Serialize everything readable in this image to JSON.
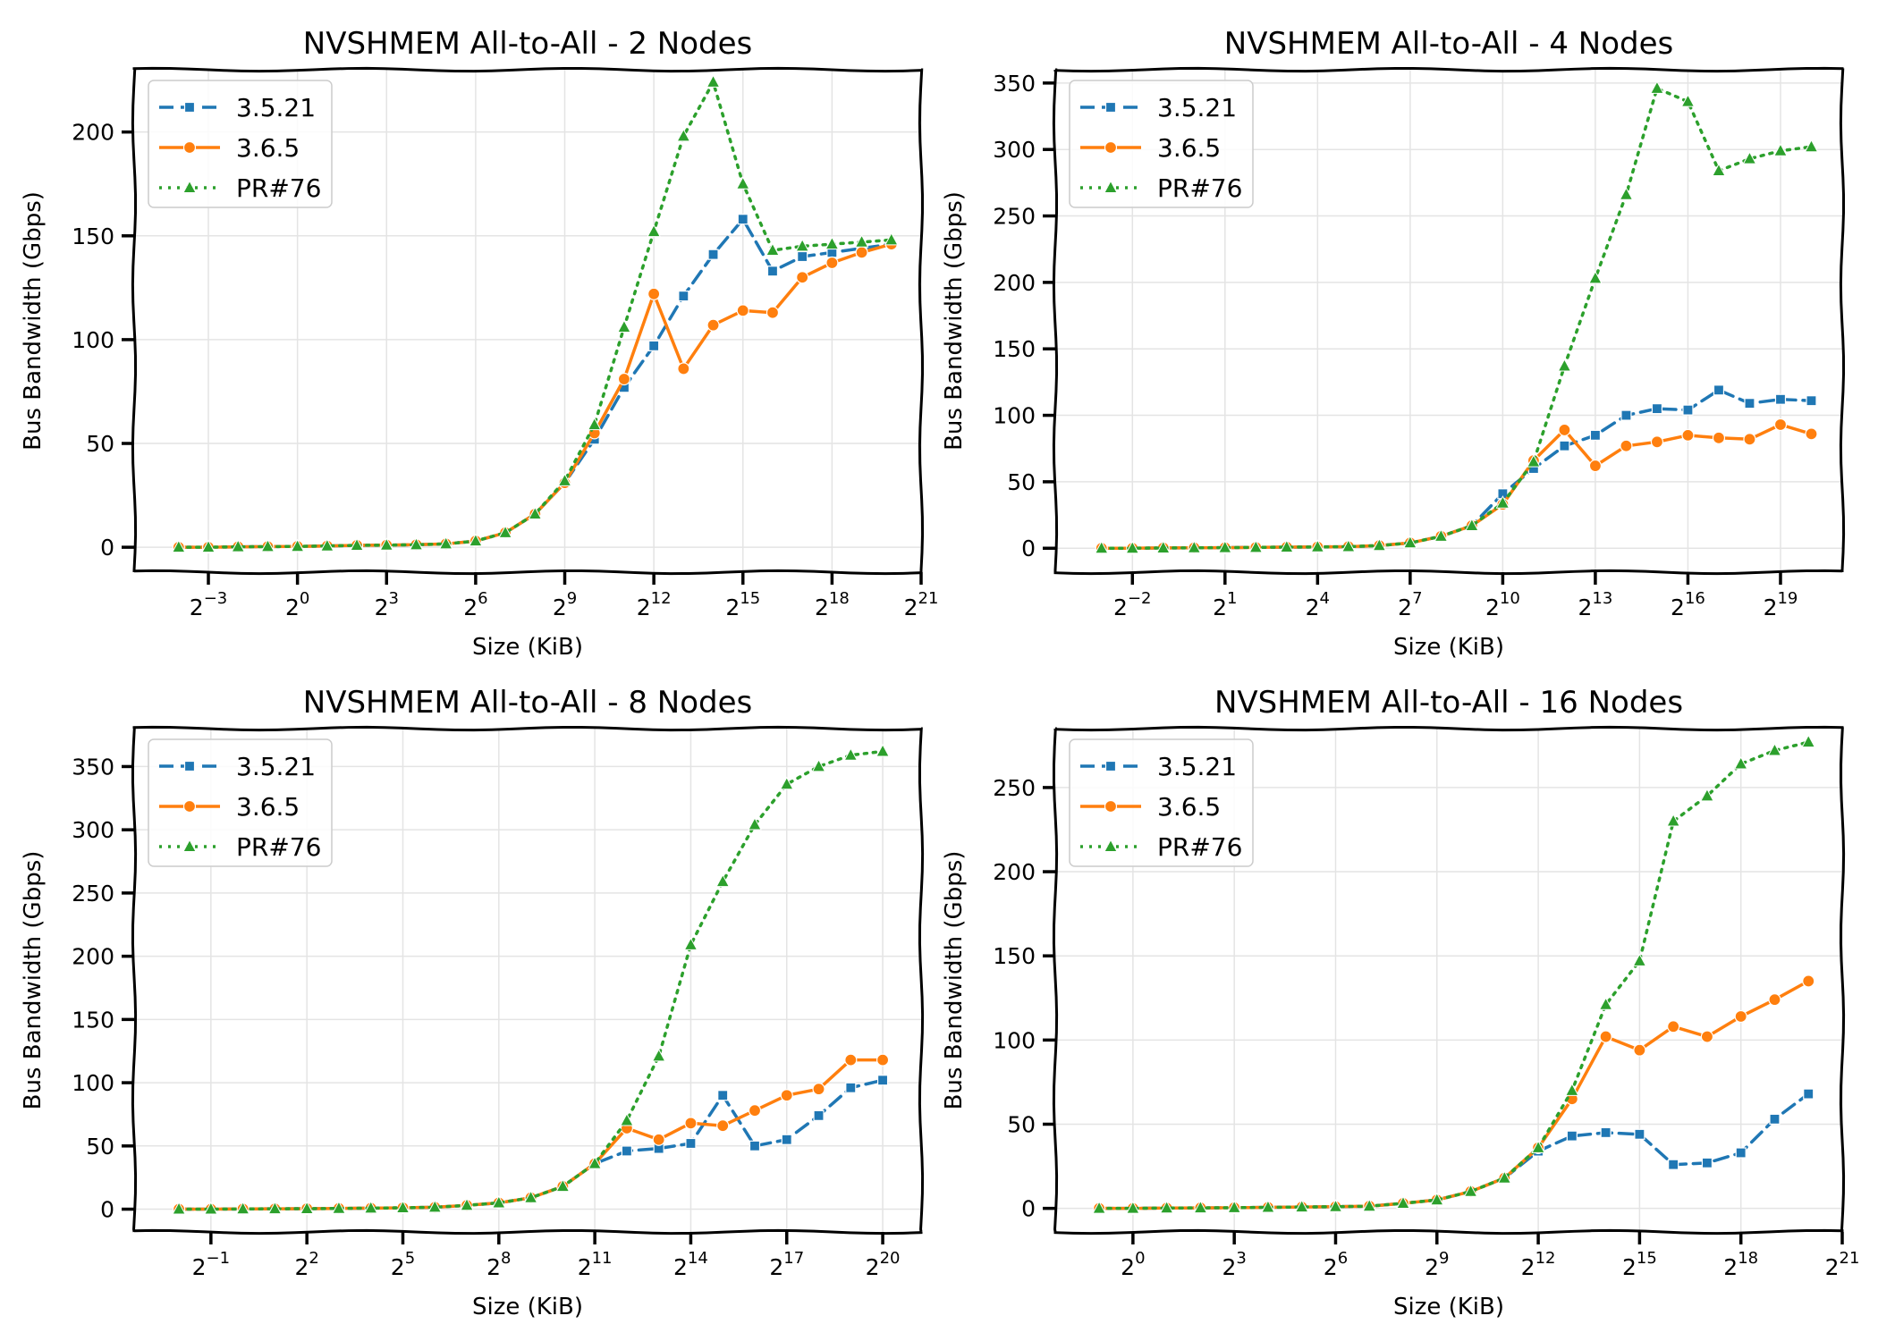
{
  "figure": {
    "background": "#ffffff",
    "colors": {
      "3.5.21": "#1f77b4",
      "3.6.5": "#ff7f0e",
      "PR#76": "#2ca02c"
    }
  },
  "chart_data": [
    {
      "type": "line",
      "title": "NVSHMEM All-to-All - 2 Nodes",
      "xlabel": "Size (KiB)",
      "ylabel": "Bus Bandwidth (Gbps)",
      "xscale": "log2",
      "xlim_exp": [
        -5.5,
        21
      ],
      "ylim": [
        -12,
        230
      ],
      "yticks": [
        0,
        50,
        100,
        150,
        200
      ],
      "xtick_exps": [
        -3,
        0,
        3,
        6,
        9,
        12,
        15,
        18,
        21
      ],
      "x_exps": [
        -4,
        -3,
        -2,
        -1,
        0,
        1,
        2,
        3,
        4,
        5,
        6,
        7,
        8,
        9,
        10,
        11,
        12,
        13,
        14,
        15,
        16,
        17,
        18,
        19,
        20
      ],
      "legend_loc": "upper-left",
      "series": [
        {
          "name": "3.5.21",
          "style": "dashed",
          "marker": "square",
          "values": [
            0,
            0,
            0.2,
            0.3,
            0.4,
            0.6,
            0.9,
            1.0,
            1.2,
            1.6,
            3,
            7,
            16,
            31,
            52,
            77,
            97,
            121,
            141,
            158,
            133,
            140,
            142,
            144,
            146
          ]
        },
        {
          "name": "3.6.5",
          "style": "solid",
          "marker": "circle",
          "values": [
            0,
            0,
            0.2,
            0.3,
            0.4,
            0.6,
            0.9,
            1.0,
            1.2,
            1.6,
            3,
            7,
            16,
            31,
            55,
            81,
            122,
            86,
            107,
            114,
            113,
            130,
            137,
            142,
            146
          ]
        },
        {
          "name": "PR#76",
          "style": "dotted",
          "marker": "triangle",
          "values": [
            0,
            0,
            0.2,
            0.3,
            0.4,
            0.6,
            0.9,
            1.0,
            1.2,
            1.6,
            3,
            7,
            16,
            32,
            59,
            106,
            152,
            198,
            224,
            175,
            143,
            145,
            146,
            147,
            148
          ]
        }
      ]
    },
    {
      "type": "line",
      "title": "NVSHMEM All-to-All - 4 Nodes",
      "xlabel": "Size (KiB)",
      "ylabel": "Bus Bandwidth (Gbps)",
      "xscale": "log2",
      "xlim_exp": [
        -4.5,
        21
      ],
      "ylim": [
        -18,
        360
      ],
      "yticks": [
        0,
        50,
        100,
        150,
        200,
        250,
        300,
        350
      ],
      "xtick_exps": [
        -2,
        1,
        4,
        7,
        10,
        13,
        16,
        19
      ],
      "x_exps": [
        -3,
        -2,
        -1,
        0,
        1,
        2,
        3,
        4,
        5,
        6,
        7,
        8,
        9,
        10,
        11,
        12,
        13,
        14,
        15,
        16,
        17,
        18,
        19,
        20
      ],
      "legend_loc": "upper-left",
      "series": [
        {
          "name": "3.5.21",
          "style": "dashed",
          "marker": "square",
          "values": [
            0,
            0,
            0.2,
            0.3,
            0.4,
            0.6,
            0.8,
            1.0,
            1.2,
            2,
            4,
            9,
            17,
            41,
            60,
            77,
            85,
            100,
            105,
            104,
            119,
            109,
            112,
            111
          ]
        },
        {
          "name": "3.6.5",
          "style": "solid",
          "marker": "circle",
          "values": [
            0,
            0,
            0.2,
            0.3,
            0.4,
            0.6,
            0.8,
            1.0,
            1.2,
            2,
            4,
            9,
            17,
            33,
            66,
            89,
            62,
            77,
            80,
            85,
            83,
            82,
            93,
            86
          ]
        },
        {
          "name": "PR#76",
          "style": "dotted",
          "marker": "triangle",
          "values": [
            0,
            0,
            0.2,
            0.3,
            0.4,
            0.6,
            0.8,
            1.0,
            1.2,
            2,
            4,
            9,
            17,
            34,
            65,
            137,
            203,
            266,
            346,
            336,
            284,
            293,
            299,
            302
          ]
        }
      ]
    },
    {
      "type": "line",
      "title": "NVSHMEM All-to-All - 8 Nodes",
      "xlabel": "Size (KiB)",
      "ylabel": "Bus Bandwidth (Gbps)",
      "xscale": "log2",
      "xlim_exp": [
        -3.4,
        21.2
      ],
      "ylim": [
        -18,
        380
      ],
      "yticks": [
        0,
        50,
        100,
        150,
        200,
        250,
        300,
        350
      ],
      "xtick_exps": [
        -1,
        2,
        5,
        8,
        11,
        14,
        17,
        20
      ],
      "x_exps": [
        -2,
        -1,
        0,
        1,
        2,
        3,
        4,
        5,
        6,
        7,
        8,
        9,
        10,
        11,
        12,
        13,
        14,
        15,
        16,
        17,
        18,
        19,
        20
      ],
      "legend_loc": "upper-left",
      "series": [
        {
          "name": "3.5.21",
          "style": "dashed",
          "marker": "square",
          "values": [
            0,
            0,
            0.2,
            0.3,
            0.4,
            0.6,
            0.8,
            1.1,
            1.5,
            3,
            5,
            9,
            18,
            36,
            46,
            48,
            52,
            90,
            50,
            55,
            74,
            96,
            102
          ]
        },
        {
          "name": "3.6.5",
          "style": "solid",
          "marker": "circle",
          "values": [
            0,
            0,
            0.2,
            0.3,
            0.4,
            0.6,
            0.8,
            1.1,
            1.5,
            3,
            5,
            9,
            18,
            36,
            64,
            55,
            68,
            66,
            78,
            90,
            95,
            118,
            118
          ]
        },
        {
          "name": "PR#76",
          "style": "dotted",
          "marker": "triangle",
          "values": [
            0,
            0,
            0.2,
            0.3,
            0.4,
            0.6,
            0.8,
            1.1,
            1.5,
            3,
            5,
            9,
            18,
            36,
            70,
            121,
            209,
            259,
            304,
            336,
            350,
            359,
            362
          ]
        }
      ]
    },
    {
      "type": "line",
      "title": "NVSHMEM All-to-All - 16 Nodes",
      "xlabel": "Size (KiB)",
      "ylabel": "Bus Bandwidth (Gbps)",
      "xscale": "log2",
      "xlim_exp": [
        -2.3,
        21
      ],
      "ylim": [
        -14,
        285
      ],
      "yticks": [
        0,
        50,
        100,
        150,
        200,
        250
      ],
      "xtick_exps": [
        0,
        3,
        6,
        9,
        12,
        15,
        18,
        21
      ],
      "x_exps": [
        -1,
        0,
        1,
        2,
        3,
        4,
        5,
        6,
        7,
        8,
        9,
        10,
        11,
        12,
        13,
        14,
        15,
        16,
        17,
        18,
        19,
        20
      ],
      "legend_loc": "upper-left",
      "series": [
        {
          "name": "3.5.21",
          "style": "dashed",
          "marker": "square",
          "values": [
            0,
            0,
            0.2,
            0.3,
            0.4,
            0.6,
            0.8,
            1.0,
            1.3,
            3,
            5,
            10,
            18,
            34,
            43,
            45,
            44,
            26,
            27,
            33,
            53,
            68
          ]
        },
        {
          "name": "3.6.5",
          "style": "solid",
          "marker": "circle",
          "values": [
            0,
            0,
            0.2,
            0.3,
            0.4,
            0.6,
            0.8,
            1.0,
            1.3,
            3,
            5,
            10,
            18,
            36,
            65,
            102,
            94,
            108,
            102,
            114,
            124,
            135
          ]
        },
        {
          "name": "PR#76",
          "style": "dotted",
          "marker": "triangle",
          "values": [
            0,
            0,
            0.2,
            0.3,
            0.4,
            0.6,
            0.8,
            1.0,
            1.3,
            3,
            5,
            10,
            18,
            36,
            70,
            121,
            147,
            230,
            245,
            264,
            272,
            277
          ]
        }
      ]
    }
  ]
}
